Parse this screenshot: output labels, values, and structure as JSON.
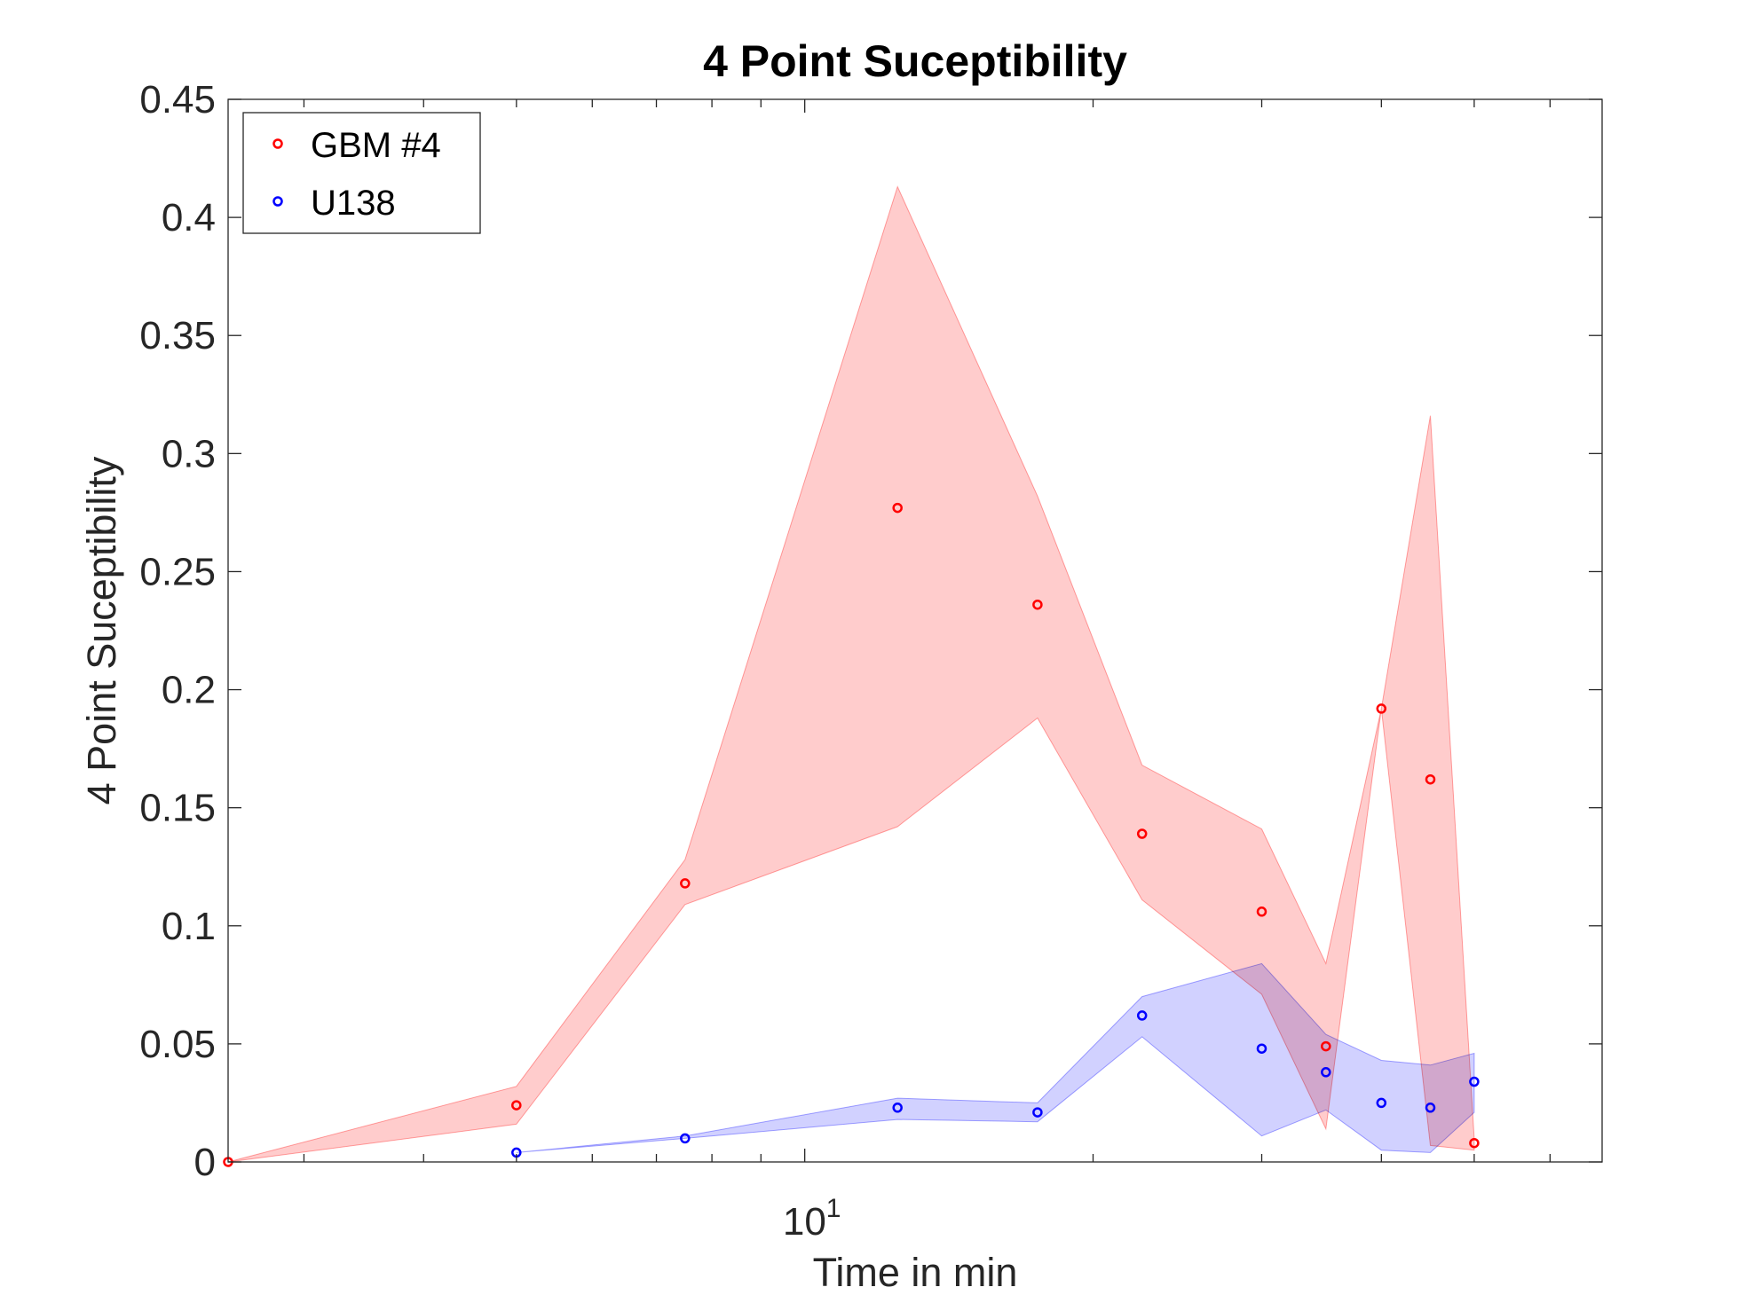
{
  "chart_data": {
    "type": "scatter",
    "title": "4 Point Suceptibility",
    "xlabel": "Time in min",
    "ylabel": "4 Point Suceptibility",
    "x_scale": "log",
    "xlim": [
      2.5,
      68
    ],
    "ylim": [
      0,
      0.45
    ],
    "y_ticks": [
      "0",
      "0.05",
      "0.1",
      "0.15",
      "0.2",
      "0.25",
      "0.3",
      "0.35",
      "0.4",
      "0.45"
    ],
    "x_tick_label": {
      "base": "10",
      "exponent": "1"
    },
    "grid": false,
    "legend_position": "top-left",
    "series": [
      {
        "name": "GBM #4",
        "color": "#ff0000",
        "band_color": "#ffcccc",
        "x": [
          2.5,
          5,
          7.5,
          12.5,
          17.5,
          22.5,
          30,
          35,
          40,
          45,
          50,
          55
        ],
        "y": [
          0.0,
          0.024,
          0.118,
          0.277,
          0.236,
          0.139,
          0.106,
          0.049,
          0.192,
          0.162,
          0.008,
          null
        ],
        "lower": [
          0.0,
          0.016,
          0.109,
          0.142,
          0.188,
          0.111,
          0.071,
          0.014,
          0.192,
          0.007,
          0.005,
          null
        ],
        "upper": [
          0.0,
          0.032,
          0.128,
          0.413,
          0.282,
          0.168,
          0.141,
          0.084,
          0.192,
          0.316,
          0.01,
          null
        ]
      },
      {
        "name": "U138",
        "color": "#0000ff",
        "band_color": "#ccccff",
        "x": [
          5,
          7.5,
          12.5,
          17.5,
          22.5,
          30,
          35,
          40,
          45,
          50,
          55
        ],
        "y": [
          0.004,
          0.01,
          0.023,
          0.021,
          0.062,
          0.048,
          0.038,
          0.025,
          0.023,
          0.034,
          null
        ],
        "lower": [
          0.004,
          0.01,
          0.018,
          0.017,
          0.053,
          0.011,
          0.022,
          0.005,
          0.004,
          0.021,
          null
        ],
        "upper": [
          0.004,
          0.011,
          0.027,
          0.025,
          0.07,
          0.084,
          0.054,
          0.043,
          0.041,
          0.046,
          null
        ]
      }
    ]
  }
}
